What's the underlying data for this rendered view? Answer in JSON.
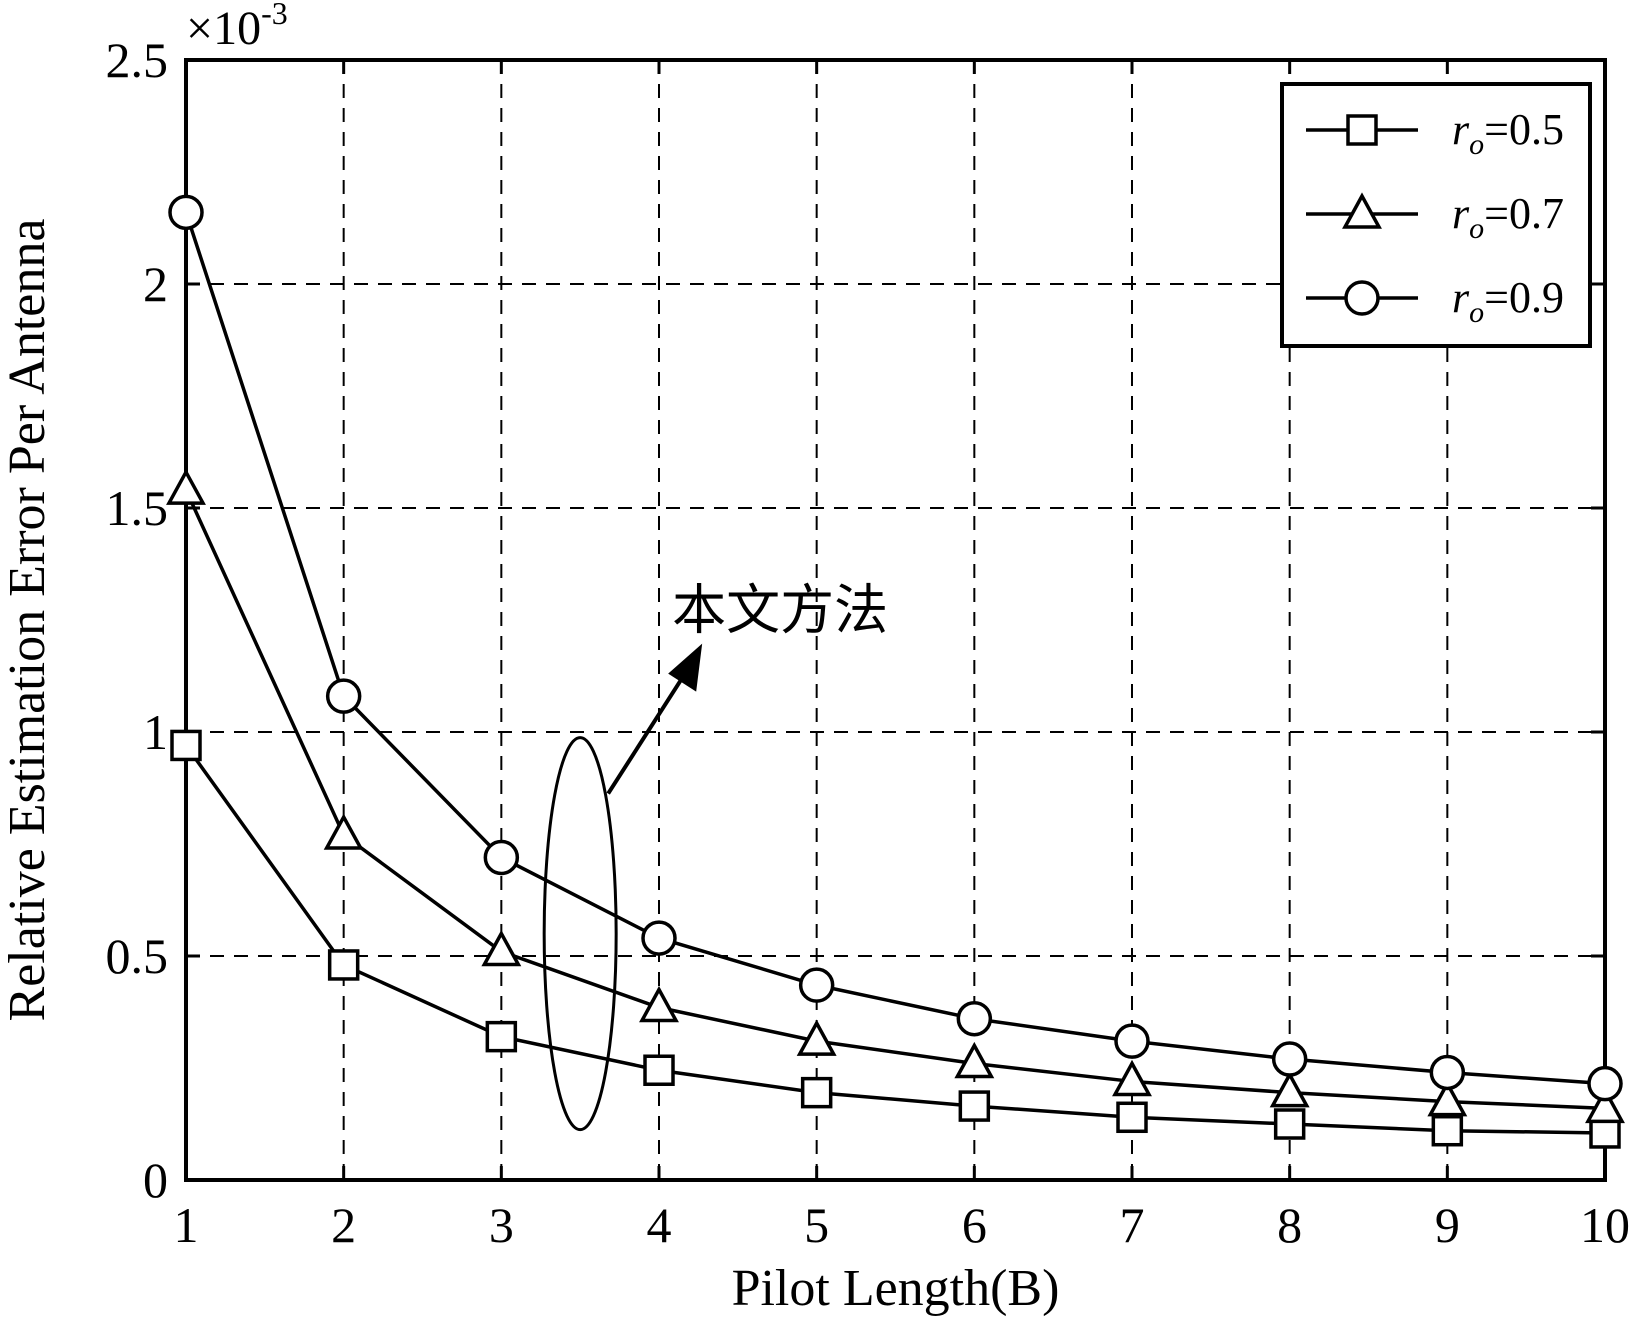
{
  "chart_data": {
    "type": "line",
    "xlabel": "Pilot Length(B)",
    "ylabel": "Relative Estimation Error Per Antenna",
    "x": [
      1,
      2,
      3,
      4,
      5,
      6,
      7,
      8,
      9,
      10
    ],
    "xlim": [
      1,
      10
    ],
    "ylim": [
      0,
      2.5
    ],
    "x_ticks": [
      "1",
      "2",
      "3",
      "4",
      "5",
      "6",
      "7",
      "8",
      "9",
      "10"
    ],
    "y_ticks": [
      "0",
      "0.5",
      "1",
      "1.5",
      "2",
      "2.5"
    ],
    "y_multiplier": {
      "base": "×10",
      "exponent": "-3"
    },
    "grid": true,
    "grid_style": "dashed",
    "legend_position": "top-right",
    "series": [
      {
        "name_base": "r",
        "name_sub": "o",
        "name_value": "=0.5",
        "marker": "square",
        "values": [
          0.97,
          0.48,
          0.32,
          0.245,
          0.195,
          0.165,
          0.14,
          0.125,
          0.11,
          0.105
        ]
      },
      {
        "name_base": "r",
        "name_sub": "o",
        "name_value": "=0.7",
        "marker": "triangle",
        "values": [
          1.54,
          0.77,
          0.51,
          0.385,
          0.31,
          0.26,
          0.22,
          0.195,
          0.175,
          0.16
        ]
      },
      {
        "name_base": "r",
        "name_sub": "o",
        "name_value": "=0.9",
        "marker": "circle",
        "values": [
          2.16,
          1.08,
          0.72,
          0.54,
          0.435,
          0.36,
          0.31,
          0.27,
          0.24,
          0.215
        ]
      }
    ],
    "annotations": [
      {
        "text": "本文方法",
        "target": "curves at x=3.5",
        "shape": "ellipse-with-arrow"
      }
    ],
    "colors": {
      "line": "#000000",
      "grid": "#000000",
      "background": "#ffffff"
    }
  }
}
